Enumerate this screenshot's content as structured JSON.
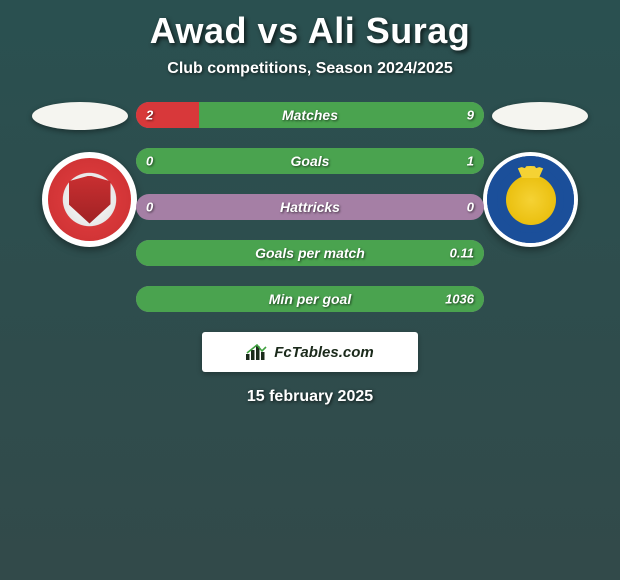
{
  "title": "Awad vs Ali Surag",
  "subtitle": "Club competitions, Season 2024/2025",
  "date": "15 february 2025",
  "fctables_label": "FcTables.com",
  "colors": {
    "bar_left": "#d8383a",
    "bar_right": "#4aa34f",
    "bar_bg": "#a57fa5"
  },
  "stats": [
    {
      "label": "Matches",
      "left_text": "2",
      "right_text": "9",
      "left_pct": 18,
      "right_pct": 82
    },
    {
      "label": "Goals",
      "left_text": "0",
      "right_text": "1",
      "left_pct": 0,
      "right_pct": 100
    },
    {
      "label": "Hattricks",
      "left_text": "0",
      "right_text": "0",
      "left_pct": 0,
      "right_pct": 0
    },
    {
      "label": "Goals per match",
      "left_text": "",
      "right_text": "0.11",
      "left_pct": 0,
      "right_pct": 100
    },
    {
      "label": "Min per goal",
      "left_text": "",
      "right_text": "1036",
      "left_pct": 0,
      "right_pct": 100
    }
  ]
}
